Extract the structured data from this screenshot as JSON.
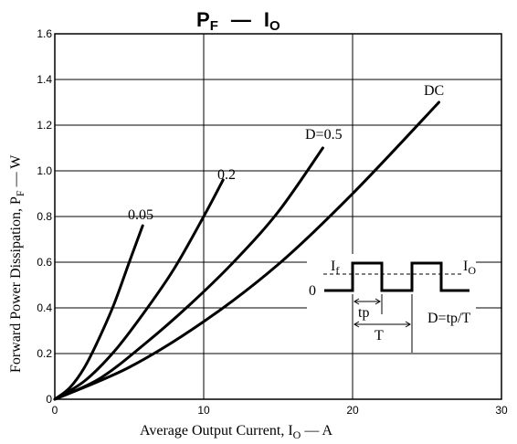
{
  "chart_data": {
    "type": "line",
    "title_main": "P",
    "title_sub": "F",
    "title_sep": "—",
    "title_main2": "I",
    "title_sub2": "O",
    "xlabel_pre": "Average Output Current, I",
    "xlabel_sub": "O",
    "xlabel_post": " — A",
    "ylabel_pre": "Forward Power Dissipation, P",
    "ylabel_sub": "F",
    "ylabel_post": " — W",
    "xlim": [
      0,
      30
    ],
    "ylim": [
      0,
      1.6
    ],
    "xticks": [
      0,
      10,
      20,
      30
    ],
    "xtick_labels": [
      "0",
      "10",
      "20",
      "30"
    ],
    "yticks": [
      0,
      0.2,
      0.4,
      0.6,
      0.8,
      1.0,
      1.2,
      1.4,
      1.6
    ],
    "ytick_labels": [
      "0",
      "0.2",
      "0.4",
      "0.6",
      "0.8",
      "1.0",
      "1.2",
      "1.4",
      "1.6"
    ],
    "grid": "major-intervals",
    "series": [
      {
        "name": "0.05",
        "x": [
          0,
          1,
          2,
          3,
          4,
          5,
          5.9
        ],
        "y": [
          0,
          0.05,
          0.14,
          0.27,
          0.42,
          0.6,
          0.76
        ]
      },
      {
        "name": "0.2",
        "x": [
          0,
          2,
          4,
          6,
          8,
          10,
          11.3
        ],
        "y": [
          0,
          0.08,
          0.21,
          0.38,
          0.57,
          0.8,
          0.96
        ]
      },
      {
        "name": "D=0.5",
        "x": [
          0,
          3,
          6,
          9,
          12,
          15,
          18
        ],
        "y": [
          0,
          0.09,
          0.24,
          0.41,
          0.6,
          0.82,
          1.1
        ]
      },
      {
        "name": "DC",
        "x": [
          0,
          5,
          10,
          15,
          20,
          25.8
        ],
        "y": [
          0,
          0.14,
          0.34,
          0.59,
          0.9,
          1.3
        ]
      }
    ],
    "inset": {
      "if_label": "I",
      "if_sub": "f",
      "io_label": "I",
      "io_sub": "O",
      "zero_label": "0",
      "tp_label": "tp",
      "t_label": "T",
      "duty_label": "D=tp/T"
    }
  }
}
